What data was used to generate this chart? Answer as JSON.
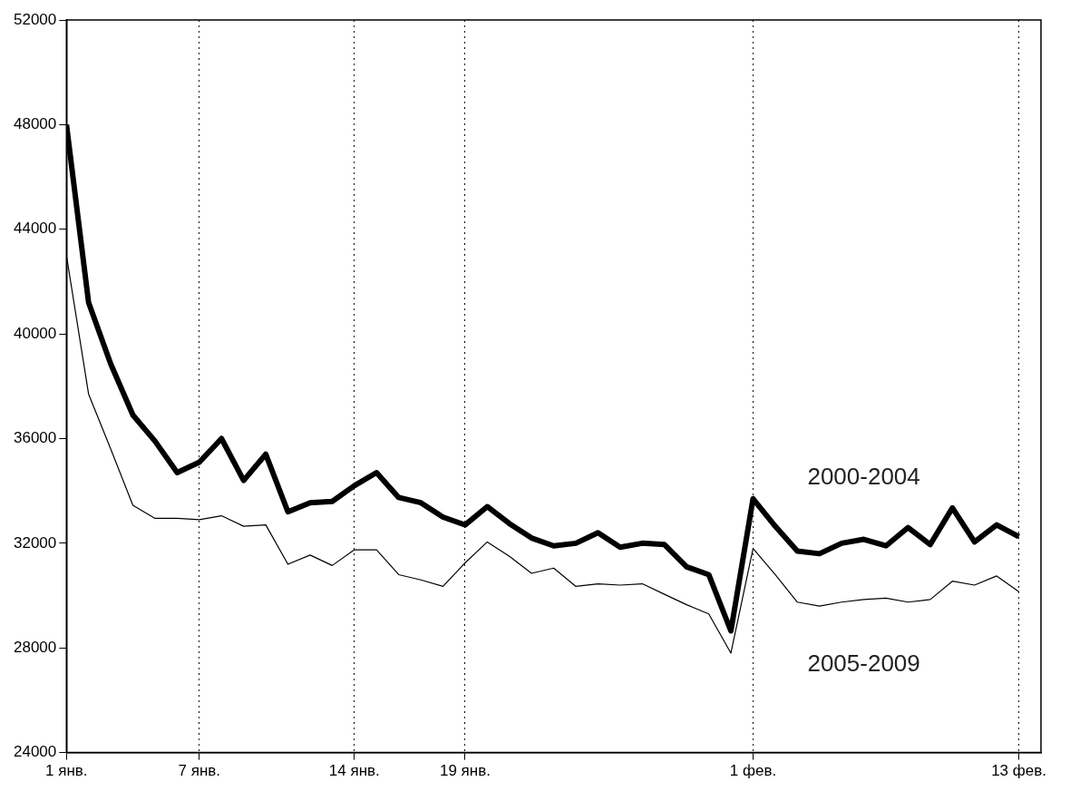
{
  "chart_data": {
    "type": "line",
    "x": [
      "--01-01",
      "--01-02",
      "--01-03",
      "--01-04",
      "--01-05",
      "--01-06",
      "--01-07",
      "--01-08",
      "--01-09",
      "--01-10",
      "--01-11",
      "--01-12",
      "--01-13",
      "--01-14",
      "--01-15",
      "--01-16",
      "--01-17",
      "--01-18",
      "--01-19",
      "--01-20",
      "--01-21",
      "--01-22",
      "--01-23",
      "--01-24",
      "--01-25",
      "--01-26",
      "--01-27",
      "--01-28",
      "--01-29",
      "--01-30",
      "--01-31",
      "--02-01",
      "--02-02",
      "--02-03",
      "--02-04",
      "--02-05",
      "--02-06",
      "--02-07",
      "--02-08",
      "--02-09",
      "--02-10",
      "--02-11",
      "--02-12",
      "--02-13"
    ],
    "series": [
      {
        "name": "2000-2004",
        "color": "#000000",
        "values": [
          48000,
          41200,
          38850,
          36900,
          35900,
          34700,
          35100,
          36000,
          34400,
          35400,
          33200,
          33550,
          33600,
          34200,
          34700,
          33750,
          33550,
          33000,
          32700,
          33400,
          32750,
          32200,
          31900,
          32000,
          32400,
          31850,
          32000,
          31950,
          31100,
          30800,
          28650,
          33700,
          32650,
          31700,
          31600,
          32000,
          32150,
          31900,
          32600,
          31950,
          33350,
          32050,
          32700,
          32250
        ]
      },
      {
        "name": "2005-2009",
        "color": "#000000",
        "values": [
          43000,
          37700,
          35600,
          33450,
          32950,
          32950,
          32900,
          33050,
          32650,
          32700,
          31200,
          31550,
          31150,
          31750,
          31750,
          30800,
          30600,
          30350,
          31250,
          32050,
          31500,
          30850,
          31050,
          30350,
          30450,
          30400,
          30450,
          30050,
          29650,
          29300,
          27800,
          31800,
          30800,
          29750,
          29600,
          29750,
          29850,
          29900,
          29750,
          29850,
          30550,
          30400,
          30750,
          30150
        ]
      }
    ],
    "xlim": [
      "--01-01",
      "--02-14"
    ],
    "xticks": [
      {
        "value": "--01-01",
        "label": "1 янв."
      },
      {
        "value": "--01-07",
        "label": "7 янв."
      },
      {
        "value": "--01-14",
        "label": "14 янв."
      },
      {
        "value": "--01-19",
        "label": "19 янв."
      },
      {
        "value": "--02-01",
        "label": "1 фев."
      },
      {
        "value": "--02-13",
        "label": "13 фев."
      }
    ],
    "ylim": [
      24000,
      52000
    ],
    "yticks": [
      24000,
      28000,
      32000,
      36000,
      40000,
      44000,
      48000,
      52000
    ],
    "grid": "x",
    "legend": false,
    "marker": "none",
    "line_style": "solid"
  }
}
